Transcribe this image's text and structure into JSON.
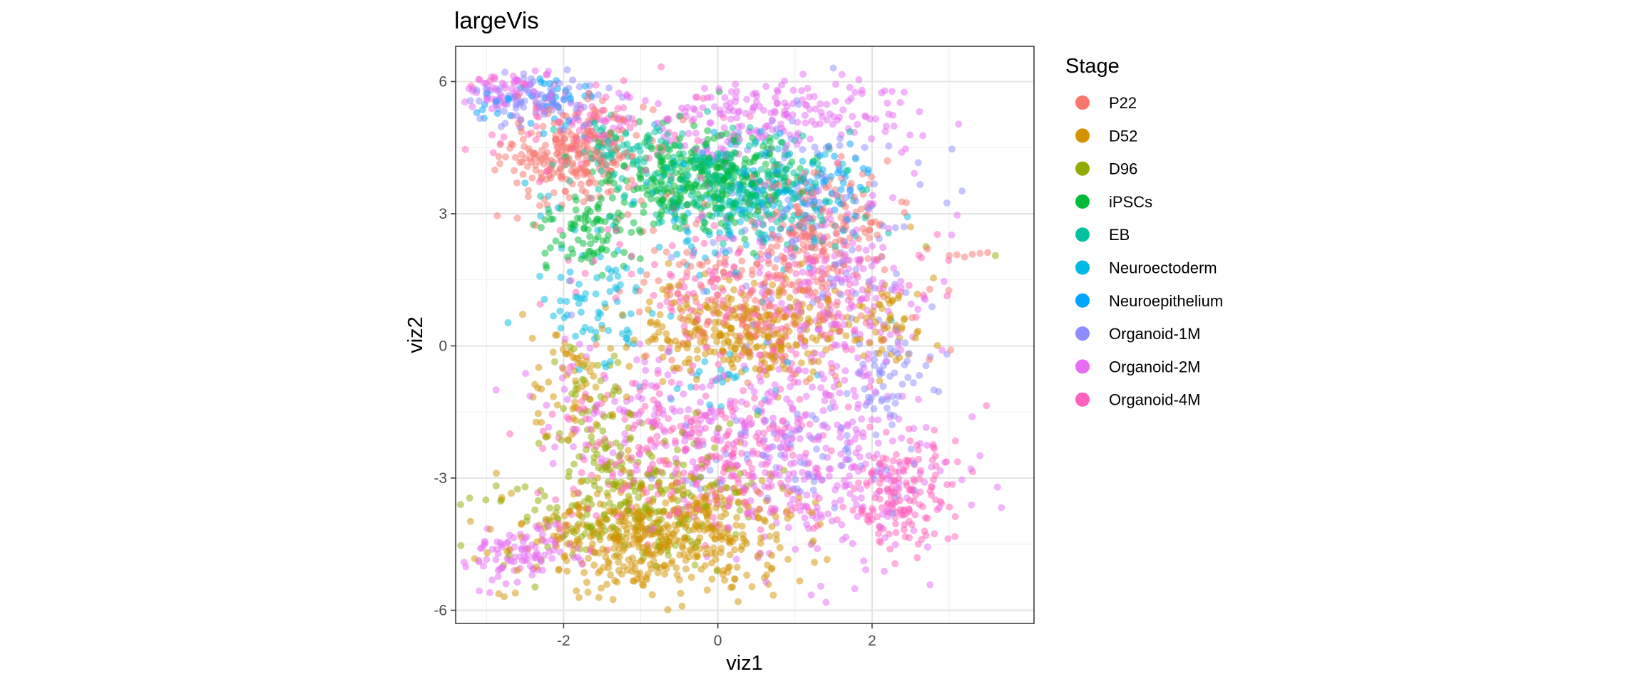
{
  "chart_data": {
    "type": "scatter",
    "title": "largeVis",
    "xlabel": "viz1",
    "ylabel": "viz2",
    "xlim": [
      -3.4,
      4.1
    ],
    "ylim": [
      -6.3,
      6.8
    ],
    "x_ticks": [
      -2,
      0,
      2
    ],
    "x_tick_labels": [
      "-2",
      "0",
      "2"
    ],
    "y_ticks": [
      -6,
      -3,
      0,
      3,
      6
    ],
    "y_tick_labels": [
      "-6",
      "-3",
      "0",
      "3",
      "6"
    ],
    "grid": true,
    "point_alpha": 0.5,
    "legend": {
      "title": "Stage",
      "position": "right"
    },
    "series": [
      {
        "name": "P22",
        "color": "#F8766D",
        "regions": [
          {
            "x": -1.9,
            "y": 4.4,
            "sx": 0.45,
            "sy": 0.5,
            "n": 260
          },
          {
            "x": 1.3,
            "y": 2.8,
            "sx": 0.45,
            "sy": 0.7,
            "n": 150
          },
          {
            "x": 0.6,
            "y": 1.2,
            "sx": 0.9,
            "sy": 0.9,
            "n": 200
          }
        ],
        "points": [
          {
            "x": 3.0,
            "y": 2.05
          },
          {
            "x": 3.1,
            "y": 2.07
          },
          {
            "x": 3.2,
            "y": 2.02
          },
          {
            "x": 3.3,
            "y": 2.08
          },
          {
            "x": 3.4,
            "y": 2.1
          },
          {
            "x": 3.5,
            "y": 2.12
          },
          {
            "x": 1.6,
            "y": 4.3
          },
          {
            "x": 2.2,
            "y": 4.2
          },
          {
            "x": -2.6,
            "y": 2.9
          }
        ]
      },
      {
        "name": "D52",
        "color": "#D39200",
        "regions": [
          {
            "x": -0.8,
            "y": -4.3,
            "sx": 0.9,
            "sy": 0.65,
            "n": 500
          },
          {
            "x": 0.4,
            "y": 0.3,
            "sx": 0.7,
            "sy": 0.55,
            "n": 300
          },
          {
            "x": -1.9,
            "y": -1.0,
            "sx": 0.3,
            "sy": 0.8,
            "n": 60
          },
          {
            "x": 2.3,
            "y": 0.5,
            "sx": 0.2,
            "sy": 0.6,
            "n": 40
          }
        ],
        "points": [
          {
            "x": -0.85,
            "y": -5.65
          },
          {
            "x": 2.5,
            "y": 2.7
          }
        ]
      },
      {
        "name": "D96",
        "color": "#93AA00",
        "regions": [
          {
            "x": -1.1,
            "y": -3.6,
            "sx": 0.8,
            "sy": 0.7,
            "n": 240
          },
          {
            "x": -1.6,
            "y": -1.6,
            "sx": 0.3,
            "sy": 0.9,
            "n": 60
          }
        ],
        "points": [
          {
            "x": 3.6,
            "y": 2.05
          },
          {
            "x": 2.7,
            "y": 2.25
          },
          {
            "x": -2.5,
            "y": -3.2
          },
          {
            "x": -2.6,
            "y": -3.25
          }
        ]
      },
      {
        "name": "iPSCs",
        "color": "#00BA38",
        "regions": [
          {
            "x": -0.2,
            "y": 3.8,
            "sx": 0.6,
            "sy": 0.55,
            "n": 320
          },
          {
            "x": -1.7,
            "y": 2.6,
            "sx": 0.3,
            "sy": 0.45,
            "n": 80
          }
        ],
        "points": [
          {
            "x": -1.9,
            "y": 2.2
          },
          {
            "x": -1.5,
            "y": 1.6
          }
        ]
      },
      {
        "name": "EB",
        "color": "#00C19F",
        "regions": [
          {
            "x": 0.3,
            "y": 3.6,
            "sx": 0.6,
            "sy": 0.6,
            "n": 240
          },
          {
            "x": -1.2,
            "y": 4.3,
            "sx": 0.4,
            "sy": 0.4,
            "n": 80
          }
        ],
        "points": [
          {
            "x": -2.3,
            "y": 3.4
          },
          {
            "x": -2.2,
            "y": 3.1
          }
        ]
      },
      {
        "name": "Neuroectoderm",
        "color": "#00B9E3",
        "regions": [
          {
            "x": 0.2,
            "y": 3.0,
            "sx": 0.8,
            "sy": 0.8,
            "n": 110
          },
          {
            "x": -1.6,
            "y": 0.8,
            "sx": 0.4,
            "sy": 0.7,
            "n": 70
          },
          {
            "x": 0.2,
            "y": -0.8,
            "sx": 0.4,
            "sy": 0.4,
            "n": 25
          }
        ],
        "points": [
          {
            "x": -2.2,
            "y": 3.4
          },
          {
            "x": -2.5,
            "y": 3.7
          },
          {
            "x": -2.3,
            "y": 2.95
          }
        ]
      },
      {
        "name": "Neuroepithelium",
        "color": "#00A5FF",
        "regions": [
          {
            "x": 1.0,
            "y": 3.7,
            "sx": 0.5,
            "sy": 0.5,
            "n": 70
          },
          {
            "x": -2.4,
            "y": 5.5,
            "sx": 0.4,
            "sy": 0.3,
            "n": 40
          }
        ],
        "points": []
      },
      {
        "name": "Organoid-1M",
        "color": "#8E8CFF",
        "regions": [
          {
            "x": -2.3,
            "y": 5.6,
            "sx": 0.5,
            "sy": 0.3,
            "n": 90
          },
          {
            "x": 1.3,
            "y": 2.8,
            "sx": 0.7,
            "sy": 1.2,
            "n": 120
          },
          {
            "x": 2.3,
            "y": -0.6,
            "sx": 0.25,
            "sy": 0.5,
            "n": 50
          },
          {
            "x": 1.0,
            "y": -2.5,
            "sx": 0.8,
            "sy": 0.6,
            "n": 80
          }
        ],
        "points": [
          {
            "x": -1.9,
            "y": 0.7
          }
        ]
      },
      {
        "name": "Organoid-2M",
        "color": "#E76BF3",
        "regions": [
          {
            "x": -2.8,
            "y": 5.8,
            "sx": 0.3,
            "sy": 0.2,
            "n": 60
          },
          {
            "x": 0.5,
            "y": 5.2,
            "sx": 1.0,
            "sy": 0.4,
            "n": 200
          },
          {
            "x": 1.6,
            "y": 1.2,
            "sx": 0.6,
            "sy": 1.3,
            "n": 180
          },
          {
            "x": 1.3,
            "y": -3.0,
            "sx": 0.8,
            "sy": 1.0,
            "n": 250
          },
          {
            "x": -2.6,
            "y": -4.7,
            "sx": 0.4,
            "sy": 0.35,
            "n": 100
          },
          {
            "x": -0.5,
            "y": -1.5,
            "sx": 1.0,
            "sy": 0.7,
            "n": 160
          }
        ],
        "points": [
          {
            "x": -3.0,
            "y": -4.85
          },
          {
            "x": -3.1,
            "y": -4.9
          }
        ]
      },
      {
        "name": "Organoid-4M",
        "color": "#FF62BC",
        "regions": [
          {
            "x": -0.3,
            "y": -2.5,
            "sx": 1.0,
            "sy": 0.9,
            "n": 300
          },
          {
            "x": 2.4,
            "y": -3.3,
            "sx": 0.3,
            "sy": 0.6,
            "n": 150
          },
          {
            "x": 0.5,
            "y": 1.3,
            "sx": 1.0,
            "sy": 0.9,
            "n": 220
          },
          {
            "x": -1.5,
            "y": 5.0,
            "sx": 0.7,
            "sy": 0.6,
            "n": 80
          }
        ],
        "points": [
          {
            "x": -3.1,
            "y": 6.05
          },
          {
            "x": -3.2,
            "y": 5.9
          },
          {
            "x": -2.9,
            "y": 6.1
          },
          {
            "x": 2.6,
            "y": -4.5
          },
          {
            "x": 2.7,
            "y": -4.3
          }
        ]
      }
    ]
  }
}
